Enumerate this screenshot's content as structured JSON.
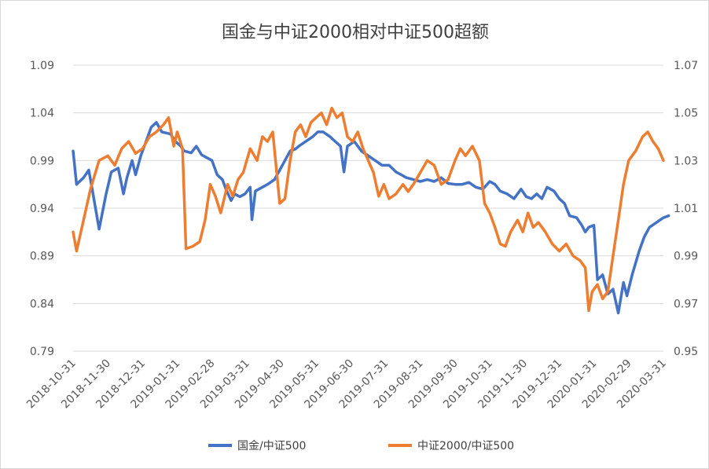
{
  "chart_data": {
    "type": "line",
    "title": "国金与中证2000相对中证500超额",
    "xlabel": "",
    "ylabel": "",
    "y_left": {
      "min": 0.79,
      "max": 1.09,
      "ticks": [
        "1.09",
        "1.04",
        "0.99",
        "0.94",
        "0.89",
        "0.84",
        "0.79"
      ]
    },
    "y_right": {
      "min": 0.95,
      "max": 1.07,
      "ticks": [
        "1.07",
        "1.05",
        "1.03",
        "1.01",
        "0.99",
        "0.97",
        "0.95"
      ]
    },
    "x_labels": [
      "2018-10-31",
      "2018-11-30",
      "2018-12-31",
      "2019-01-31",
      "2019-02-28",
      "2019-03-31",
      "2019-04-30",
      "2019-05-31",
      "2019-06-30",
      "2019-07-31",
      "2019-08-31",
      "2019-09-30",
      "2019-10-31",
      "2019-11-30",
      "2019-12-31",
      "2020-01-31",
      "2020-02-29",
      "2020-03-31"
    ],
    "grid": true,
    "legend_position": "bottom",
    "series": [
      {
        "name": "国金/中证500",
        "axis": "left",
        "color": "#4472C4",
        "points": [
          [
            0,
            1.0
          ],
          [
            0.1,
            0.965
          ],
          [
            0.3,
            0.972
          ],
          [
            0.45,
            0.98
          ],
          [
            0.55,
            0.96
          ],
          [
            0.75,
            0.918
          ],
          [
            0.95,
            0.955
          ],
          [
            1.1,
            0.978
          ],
          [
            1.3,
            0.982
          ],
          [
            1.45,
            0.955
          ],
          [
            1.55,
            0.972
          ],
          [
            1.7,
            0.99
          ],
          [
            1.8,
            0.975
          ],
          [
            1.95,
            0.995
          ],
          [
            2.1,
            1.01
          ],
          [
            2.25,
            1.025
          ],
          [
            2.4,
            1.03
          ],
          [
            2.55,
            1.02
          ],
          [
            2.8,
            1.018
          ],
          [
            2.95,
            1.01
          ],
          [
            3.1,
            1.005
          ],
          [
            3.2,
            1.0
          ],
          [
            3.4,
            0.998
          ],
          [
            3.55,
            1.005
          ],
          [
            3.7,
            0.996
          ],
          [
            4.0,
            0.99
          ],
          [
            4.15,
            0.975
          ],
          [
            4.3,
            0.97
          ],
          [
            4.4,
            0.96
          ],
          [
            4.55,
            0.948
          ],
          [
            4.65,
            0.955
          ],
          [
            4.8,
            0.952
          ],
          [
            4.95,
            0.955
          ],
          [
            5.1,
            0.962
          ],
          [
            5.15,
            0.928
          ],
          [
            5.25,
            0.958
          ],
          [
            5.45,
            0.962
          ],
          [
            5.6,
            0.965
          ],
          [
            5.8,
            0.97
          ],
          [
            5.95,
            0.98
          ],
          [
            6.1,
            0.99
          ],
          [
            6.25,
            1.0
          ],
          [
            6.4,
            1.002
          ],
          [
            6.5,
            1.005
          ],
          [
            6.7,
            1.01
          ],
          [
            6.9,
            1.015
          ],
          [
            7.05,
            1.02
          ],
          [
            7.2,
            1.02
          ],
          [
            7.4,
            1.015
          ],
          [
            7.55,
            1.01
          ],
          [
            7.7,
            1.005
          ],
          [
            7.8,
            0.978
          ],
          [
            7.9,
            1.005
          ],
          [
            8.1,
            1.01
          ],
          [
            8.3,
            1.0
          ],
          [
            8.5,
            0.995
          ],
          [
            8.7,
            0.99
          ],
          [
            8.9,
            0.985
          ],
          [
            9.1,
            0.985
          ],
          [
            9.3,
            0.978
          ],
          [
            9.45,
            0.975
          ],
          [
            9.6,
            0.972
          ],
          [
            9.8,
            0.97
          ],
          [
            10.0,
            0.968
          ],
          [
            10.2,
            0.97
          ],
          [
            10.4,
            0.968
          ],
          [
            10.6,
            0.972
          ],
          [
            10.8,
            0.966
          ],
          [
            11.0,
            0.965
          ],
          [
            11.2,
            0.965
          ],
          [
            11.4,
            0.967
          ],
          [
            11.6,
            0.962
          ],
          [
            11.8,
            0.96
          ],
          [
            12.0,
            0.968
          ],
          [
            12.15,
            0.965
          ],
          [
            12.3,
            0.958
          ],
          [
            12.5,
            0.955
          ],
          [
            12.7,
            0.95
          ],
          [
            12.9,
            0.96
          ],
          [
            13.05,
            0.952
          ],
          [
            13.2,
            0.95
          ],
          [
            13.35,
            0.955
          ],
          [
            13.5,
            0.95
          ],
          [
            13.65,
            0.962
          ],
          [
            13.85,
            0.958
          ],
          [
            14.0,
            0.95
          ],
          [
            14.15,
            0.945
          ],
          [
            14.3,
            0.932
          ],
          [
            14.5,
            0.93
          ],
          [
            14.65,
            0.922
          ],
          [
            14.75,
            0.915
          ],
          [
            14.85,
            0.92
          ],
          [
            15.0,
            0.922
          ],
          [
            15.1,
            0.865
          ],
          [
            15.25,
            0.87
          ],
          [
            15.4,
            0.85
          ],
          [
            15.55,
            0.855
          ],
          [
            15.7,
            0.83
          ],
          [
            15.85,
            0.862
          ],
          [
            15.95,
            0.848
          ],
          [
            16.1,
            0.87
          ],
          [
            16.3,
            0.895
          ],
          [
            16.45,
            0.91
          ],
          [
            16.6,
            0.92
          ],
          [
            16.8,
            0.925
          ],
          [
            17.0,
            0.93
          ],
          [
            17.15,
            0.932
          ]
        ]
      },
      {
        "name": "中证2000/中证500",
        "axis": "right",
        "color": "#ED7D31",
        "points": [
          [
            0,
            1.0
          ],
          [
            0.1,
            0.992
          ],
          [
            0.3,
            1.005
          ],
          [
            0.5,
            1.018
          ],
          [
            0.75,
            1.03
          ],
          [
            1.0,
            1.032
          ],
          [
            1.2,
            1.028
          ],
          [
            1.4,
            1.035
          ],
          [
            1.6,
            1.038
          ],
          [
            1.8,
            1.033
          ],
          [
            2.0,
            1.035
          ],
          [
            2.2,
            1.04
          ],
          [
            2.4,
            1.042
          ],
          [
            2.6,
            1.045
          ],
          [
            2.75,
            1.048
          ],
          [
            2.9,
            1.036
          ],
          [
            3.0,
            1.042
          ],
          [
            3.15,
            1.035
          ],
          [
            3.25,
            0.993
          ],
          [
            3.45,
            0.994
          ],
          [
            3.65,
            0.996
          ],
          [
            3.8,
            1.005
          ],
          [
            3.95,
            1.02
          ],
          [
            4.1,
            1.015
          ],
          [
            4.25,
            1.008
          ],
          [
            4.45,
            1.02
          ],
          [
            4.6,
            1.015
          ],
          [
            4.75,
            1.022
          ],
          [
            4.9,
            1.025
          ],
          [
            5.0,
            1.03
          ],
          [
            5.1,
            1.035
          ],
          [
            5.3,
            1.03
          ],
          [
            5.45,
            1.04
          ],
          [
            5.6,
            1.038
          ],
          [
            5.75,
            1.042
          ],
          [
            5.95,
            1.012
          ],
          [
            6.1,
            1.014
          ],
          [
            6.25,
            1.03
          ],
          [
            6.4,
            1.042
          ],
          [
            6.55,
            1.045
          ],
          [
            6.7,
            1.04
          ],
          [
            6.85,
            1.046
          ],
          [
            7.0,
            1.048
          ],
          [
            7.15,
            1.05
          ],
          [
            7.3,
            1.045
          ],
          [
            7.45,
            1.052
          ],
          [
            7.6,
            1.048
          ],
          [
            7.75,
            1.05
          ],
          [
            7.9,
            1.04
          ],
          [
            8.05,
            1.038
          ],
          [
            8.2,
            1.042
          ],
          [
            8.35,
            1.035
          ],
          [
            8.5,
            1.03
          ],
          [
            8.65,
            1.025
          ],
          [
            8.8,
            1.015
          ],
          [
            8.95,
            1.02
          ],
          [
            9.1,
            1.014
          ],
          [
            9.3,
            1.016
          ],
          [
            9.5,
            1.02
          ],
          [
            9.65,
            1.017
          ],
          [
            9.8,
            1.02
          ],
          [
            10.0,
            1.025
          ],
          [
            10.2,
            1.03
          ],
          [
            10.4,
            1.028
          ],
          [
            10.6,
            1.02
          ],
          [
            10.8,
            1.022
          ],
          [
            11.0,
            1.03
          ],
          [
            11.15,
            1.035
          ],
          [
            11.3,
            1.032
          ],
          [
            11.5,
            1.036
          ],
          [
            11.7,
            1.03
          ],
          [
            11.85,
            1.012
          ],
          [
            12.0,
            1.008
          ],
          [
            12.15,
            1.002
          ],
          [
            12.3,
            0.995
          ],
          [
            12.45,
            0.994
          ],
          [
            12.6,
            1.0
          ],
          [
            12.8,
            1.005
          ],
          [
            12.95,
            1.0
          ],
          [
            13.1,
            1.008
          ],
          [
            13.25,
            1.002
          ],
          [
            13.4,
            1.004
          ],
          [
            13.6,
            1.0
          ],
          [
            13.8,
            0.995
          ],
          [
            14.0,
            0.992
          ],
          [
            14.2,
            0.995
          ],
          [
            14.4,
            0.99
          ],
          [
            14.6,
            0.988
          ],
          [
            14.75,
            0.985
          ],
          [
            14.85,
            0.967
          ],
          [
            14.95,
            0.975
          ],
          [
            15.1,
            0.978
          ],
          [
            15.25,
            0.972
          ],
          [
            15.4,
            0.975
          ],
          [
            15.55,
            0.99
          ],
          [
            15.7,
            1.005
          ],
          [
            15.85,
            1.02
          ],
          [
            16.0,
            1.03
          ],
          [
            16.2,
            1.034
          ],
          [
            16.4,
            1.04
          ],
          [
            16.55,
            1.042
          ],
          [
            16.7,
            1.038
          ],
          [
            16.85,
            1.035
          ],
          [
            17.0,
            1.03
          ]
        ]
      }
    ]
  }
}
